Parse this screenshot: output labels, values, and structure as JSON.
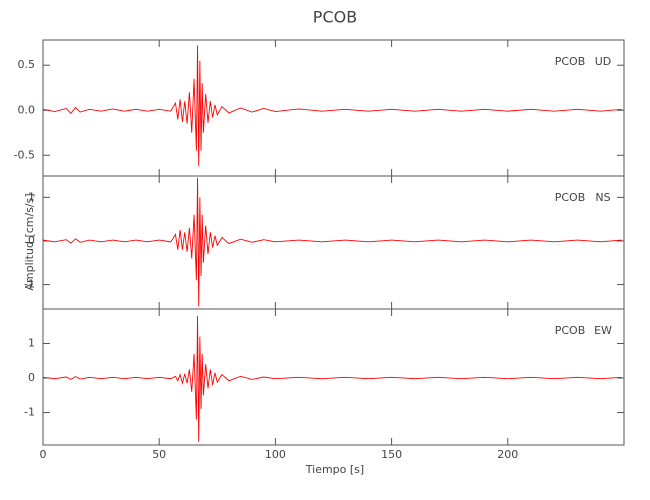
{
  "chart_data": [
    {
      "type": "line",
      "title": "PCOB",
      "station": "PCOB",
      "component": "UD",
      "xlim": [
        0,
        250
      ],
      "ylim": [
        -0.73,
        0.78
      ],
      "yticks": [
        0.5,
        {
          "value": 0,
          "label": "0.0"
        },
        -0.5
      ],
      "x": [
        0,
        5,
        10,
        12,
        14,
        16,
        20,
        25,
        30,
        35,
        40,
        45,
        50,
        55,
        57,
        58,
        59,
        60,
        61,
        62,
        63,
        64,
        65,
        66,
        66.5,
        67,
        67.5,
        68,
        68.5,
        69,
        70,
        71,
        72,
        73,
        74,
        75,
        77,
        80,
        85,
        90,
        95,
        100,
        110,
        120,
        130,
        140,
        150,
        160,
        170,
        180,
        190,
        200,
        210,
        220,
        230,
        240,
        249
      ],
      "series": [
        {
          "color": "#ff0000",
          "values": [
            0.01,
            -0.015,
            0.02,
            -0.035,
            0.03,
            -0.02,
            0.01,
            -0.01,
            0.015,
            -0.01,
            0.01,
            -0.01,
            0.01,
            -0.01,
            0.08,
            -0.1,
            0.12,
            -0.13,
            0.1,
            -0.15,
            0.2,
            -0.25,
            0.35,
            -0.45,
            0.72,
            -0.62,
            0.55,
            -0.45,
            0.3,
            -0.25,
            0.18,
            -0.14,
            0.1,
            -0.08,
            0.06,
            -0.05,
            0.04,
            -0.03,
            0.025,
            -0.02,
            0.02,
            -0.015,
            0.015,
            -0.01,
            0.01,
            -0.01,
            0.01,
            -0.01,
            0.01,
            -0.01,
            0.01,
            -0.01,
            0.01,
            -0.01,
            0.01,
            -0.01,
            0.01
          ]
        }
      ]
    },
    {
      "type": "line",
      "ylabel": "Amplitud [cm/s/s]",
      "station": "PCOB",
      "component": "NS",
      "xlim": [
        0,
        250
      ],
      "ylim": [
        -1.56,
        1.49
      ],
      "yticks": [
        1,
        0,
        -1
      ],
      "x": [
        0,
        5,
        10,
        12,
        14,
        16,
        20,
        25,
        30,
        35,
        40,
        45,
        50,
        55,
        57,
        58,
        59,
        60,
        61,
        62,
        63,
        64,
        65,
        66,
        66.5,
        67,
        67.5,
        68,
        68.5,
        69,
        70,
        71,
        72,
        73,
        74,
        75,
        77,
        80,
        85,
        90,
        95,
        100,
        110,
        120,
        130,
        140,
        150,
        160,
        170,
        180,
        190,
        200,
        210,
        220,
        230,
        240,
        249
      ],
      "series": [
        {
          "color": "#ff0000",
          "values": [
            0.02,
            -0.02,
            0.03,
            -0.05,
            0.05,
            -0.03,
            0.02,
            -0.02,
            0.02,
            -0.02,
            0.02,
            -0.02,
            0.02,
            -0.02,
            0.15,
            -0.2,
            0.25,
            -0.2,
            0.2,
            -0.25,
            0.3,
            -0.4,
            0.6,
            -0.9,
            1.45,
            -1.5,
            1.0,
            -0.8,
            0.6,
            -0.5,
            0.35,
            -0.3,
            0.2,
            -0.15,
            0.12,
            -0.1,
            0.08,
            -0.06,
            0.04,
            -0.03,
            0.03,
            -0.02,
            0.02,
            -0.02,
            0.02,
            -0.02,
            0.02,
            -0.02,
            0.02,
            -0.02,
            0.02,
            -0.02,
            0.02,
            -0.02,
            0.02,
            -0.02,
            0.02
          ]
        }
      ]
    },
    {
      "type": "line",
      "xlabel": "Tiempo [s]",
      "station": "PCOB",
      "component": "EW",
      "xlim": [
        0,
        250
      ],
      "ylim": [
        -1.94,
        2.0
      ],
      "xticks": [
        0,
        50,
        100,
        150,
        200
      ],
      "yticks": [
        1,
        0,
        -1
      ],
      "x": [
        0,
        5,
        10,
        12,
        14,
        16,
        20,
        25,
        30,
        35,
        40,
        45,
        50,
        55,
        57,
        58,
        59,
        60,
        61,
        62,
        63,
        64,
        65,
        66,
        66.5,
        67,
        67.5,
        68,
        68.5,
        69,
        70,
        71,
        72,
        73,
        74,
        75,
        77,
        80,
        85,
        90,
        95,
        100,
        110,
        120,
        130,
        140,
        150,
        160,
        170,
        180,
        190,
        200,
        210,
        220,
        230,
        240,
        249
      ],
      "series": [
        {
          "color": "#ff0000",
          "values": [
            0.02,
            -0.02,
            0.03,
            -0.04,
            0.04,
            -0.03,
            0.02,
            -0.02,
            0.02,
            -0.02,
            0.02,
            -0.02,
            0.02,
            -0.02,
            0.05,
            -0.08,
            0.1,
            -0.15,
            0.12,
            -0.15,
            0.25,
            -0.4,
            0.7,
            -1.2,
            1.8,
            -1.85,
            1.2,
            -0.9,
            0.7,
            -0.5,
            0.4,
            -0.3,
            0.25,
            -0.2,
            0.15,
            -0.12,
            0.1,
            -0.08,
            0.05,
            -0.04,
            0.03,
            -0.02,
            0.02,
            -0.02,
            0.02,
            -0.02,
            0.02,
            -0.02,
            0.02,
            -0.02,
            0.02,
            -0.02,
            0.02,
            -0.02,
            0.02,
            -0.02,
            0.02
          ]
        }
      ]
    }
  ]
}
